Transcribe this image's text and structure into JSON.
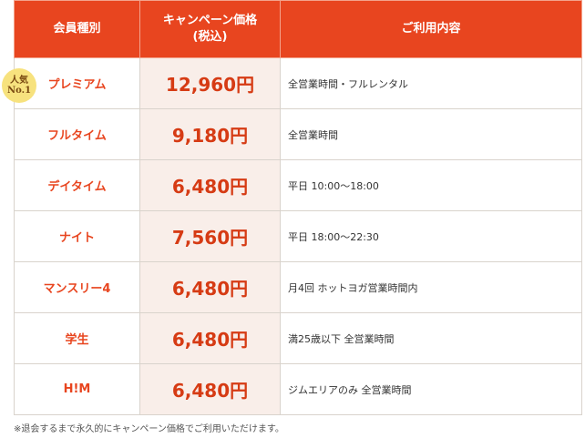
{
  "table": {
    "headers": [
      "会員種別",
      "キャンペーン価格",
      "(税込)",
      "ご利用内容"
    ],
    "rows": [
      {
        "type": "プレミアム",
        "price": "12,960円",
        "usage": "全営業時間・フルレンタル"
      },
      {
        "type": "フルタイム",
        "price": "9,180円",
        "usage": "全営業時間"
      },
      {
        "type": "デイタイム",
        "price": "6,480円",
        "usage": "平日 10:00～18:00"
      },
      {
        "type": "ナイト",
        "price": "7,560円",
        "usage": "平日 18:00～22:30"
      },
      {
        "type": "マンスリー4",
        "price": "6,480円",
        "usage": "月4回 ホットヨガ営業時間内"
      },
      {
        "type": "学生",
        "price": "6,480円",
        "usage": "満25歳以下 全営業時間"
      },
      {
        "type": "H!M",
        "price": "6,480円",
        "usage": "ジムエリアのみ 全営業時間"
      }
    ]
  },
  "badge": {
    "line1": "人気",
    "line2": "No.1"
  },
  "note": "※退会するまで永久的にキャンペーン価格でご利用いただけます。",
  "colors": {
    "accent": "#e8451f",
    "price_bg": "#f9eee9",
    "badge": "#f7e27e"
  }
}
